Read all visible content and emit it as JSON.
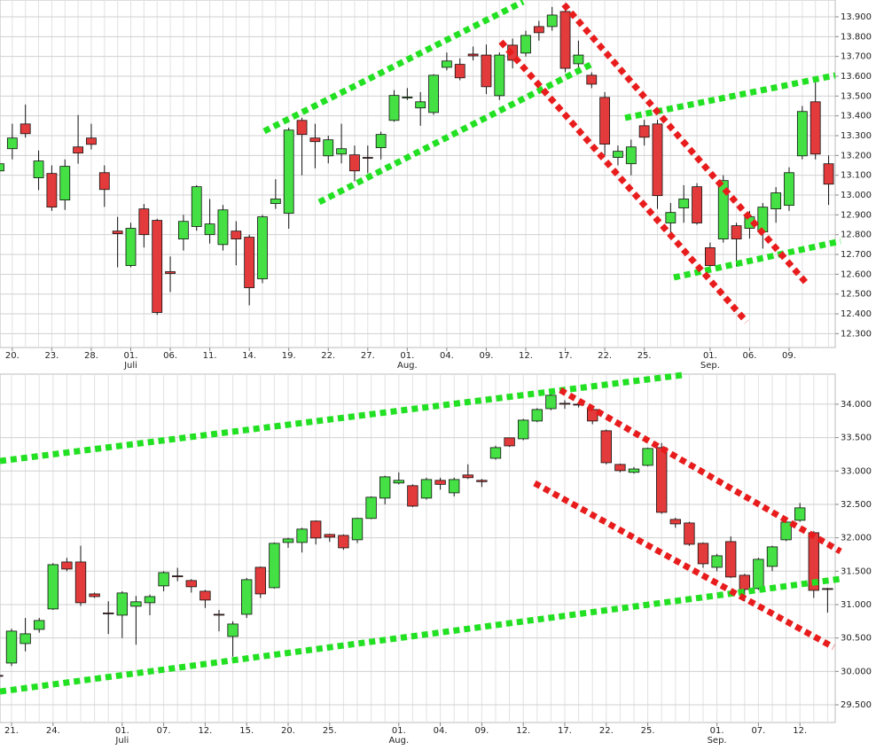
{
  "chart_data": [
    {
      "type": "candlestick",
      "grid": true,
      "up_color": "#44e044",
      "down_color": "#e33b3b",
      "categories": [
        null,
        "20.",
        null,
        null,
        "23.",
        null,
        null,
        "28.",
        null,
        null,
        "01.",
        null,
        null,
        "06.",
        null,
        null,
        "11.",
        null,
        null,
        "14.",
        null,
        null,
        "19.",
        null,
        null,
        "22.",
        null,
        null,
        "27.",
        null,
        null,
        "01.",
        null,
        null,
        "04.",
        null,
        null,
        "09.",
        null,
        null,
        "12.",
        null,
        null,
        "17.",
        null,
        null,
        "22.",
        null,
        null,
        "25.",
        null,
        null,
        null,
        null,
        "01.",
        null,
        null,
        "06.",
        null,
        null,
        "09.",
        null,
        null,
        null
      ],
      "month_labels": [
        null,
        null,
        null,
        null,
        null,
        null,
        null,
        null,
        null,
        null,
        "Juli",
        null,
        null,
        null,
        null,
        null,
        null,
        null,
        null,
        null,
        null,
        null,
        null,
        null,
        null,
        null,
        null,
        null,
        null,
        null,
        null,
        "Aug.",
        null,
        null,
        null,
        null,
        null,
        null,
        null,
        null,
        null,
        null,
        null,
        null,
        null,
        null,
        null,
        null,
        null,
        null,
        null,
        null,
        null,
        null,
        "Sep.",
        null,
        null,
        null,
        null,
        null,
        null,
        null,
        null,
        null
      ],
      "open": [
        13122,
        13234,
        13359,
        13087,
        13109,
        12975,
        13243,
        13288,
        13113,
        12818,
        12644,
        12930,
        12872,
        12613,
        12778,
        12841,
        12800,
        12750,
        12818,
        12787,
        12577,
        12957,
        12908,
        13377,
        13288,
        13198,
        13207,
        13203,
        13190,
        13239,
        13377,
        13490,
        13440,
        13417,
        13645,
        13660,
        13712,
        13707,
        13502,
        13757,
        13717,
        13851,
        13851,
        13927,
        13663,
        13605,
        13493,
        13190,
        13158,
        13350,
        13359,
        12859,
        12935,
        13042,
        12734,
        12778,
        12845,
        12832,
        12814,
        12930,
        12948,
        13198,
        13471,
        13158
      ],
      "high": [
        13180,
        13360,
        13457,
        13225,
        13150,
        13180,
        13404,
        13360,
        13150,
        12890,
        12860,
        12955,
        12880,
        12690,
        12900,
        13050,
        12980,
        12950,
        12868,
        12800,
        12900,
        13080,
        13340,
        13390,
        13360,
        13300,
        13360,
        13250,
        13250,
        13320,
        13530,
        13540,
        13520,
        13610,
        13720,
        13690,
        13750,
        13760,
        13720,
        13790,
        13830,
        13880,
        13950,
        13940,
        13780,
        13620,
        13520,
        13250,
        13280,
        13380,
        13380,
        12960,
        13050,
        13060,
        12760,
        13100,
        12860,
        12920,
        12960,
        13040,
        13140,
        13450,
        13570,
        13200
      ],
      "low": [
        13100,
        13180,
        13290,
        13025,
        12920,
        12925,
        13158,
        13230,
        12940,
        12635,
        12635,
        12735,
        12395,
        12510,
        12720,
        12820,
        12755,
        12720,
        12645,
        12443,
        12555,
        12930,
        12830,
        13100,
        13135,
        13160,
        13160,
        13070,
        13110,
        13180,
        13370,
        13480,
        13350,
        13405,
        13630,
        13580,
        13680,
        13510,
        13480,
        13640,
        13700,
        13780,
        13830,
        13620,
        13640,
        13540,
        13200,
        13150,
        13100,
        13250,
        12930,
        12780,
        12860,
        12850,
        12610,
        12760,
        12640,
        12780,
        12730,
        12860,
        12920,
        13180,
        13180,
        12950
      ],
      "close": [
        13158,
        13288,
        13310,
        13172,
        12939,
        13145,
        13212,
        13256,
        13028,
        12805,
        12832,
        12800,
        12407,
        12604,
        12867,
        13042,
        12854,
        12925,
        12778,
        12532,
        12890,
        12980,
        13328,
        13306,
        13270,
        13279,
        13234,
        13122,
        13188,
        13306,
        13503,
        13495,
        13471,
        13605,
        13677,
        13592,
        13703,
        13547,
        13707,
        13681,
        13806,
        13820,
        13909,
        13640,
        13707,
        13560,
        13257,
        13221,
        13243,
        13292,
        12997,
        12912,
        12980,
        12859,
        12644,
        13073,
        12778,
        12890,
        12939,
        13011,
        13113,
        13422,
        13207,
        13055
      ],
      "ylim": [
        12230,
        13985
      ],
      "yticks": [
        {
          "value": 12300,
          "label": "12.300"
        },
        {
          "value": 12400,
          "label": "12.400"
        },
        {
          "value": 12500,
          "label": "12.500"
        },
        {
          "value": 12600,
          "label": "12.600"
        },
        {
          "value": 12700,
          "label": "12.700"
        },
        {
          "value": 12800,
          "label": "12.800"
        },
        {
          "value": 12900,
          "label": "12.900"
        },
        {
          "value": 13000,
          "label": "13.000"
        },
        {
          "value": 13100,
          "label": "13.100"
        },
        {
          "value": 13200,
          "label": "13.200"
        },
        {
          "value": 13300,
          "label": "13.300"
        },
        {
          "value": 13400,
          "label": "13.400"
        },
        {
          "value": 13500,
          "label": "13.500"
        },
        {
          "value": 13600,
          "label": "13.600"
        },
        {
          "value": 13700,
          "label": "13.700"
        },
        {
          "value": 13800,
          "label": "13.800"
        },
        {
          "value": 13900,
          "label": "13.900"
        }
      ]
    },
    {
      "type": "candlestick",
      "grid": true,
      "up_color": "#44e044",
      "down_color": "#e33b3b",
      "categories": [
        null,
        "21.",
        null,
        null,
        "24.",
        null,
        null,
        null,
        null,
        "01.",
        null,
        null,
        "07.",
        null,
        null,
        "12.",
        null,
        null,
        "15.",
        null,
        null,
        "20.",
        null,
        null,
        "25.",
        null,
        null,
        null,
        null,
        "01.",
        null,
        null,
        "04.",
        null,
        null,
        "09.",
        null,
        null,
        "12.",
        null,
        null,
        "17.",
        null,
        null,
        "22.",
        null,
        null,
        "25.",
        null,
        null,
        null,
        null,
        "01.",
        null,
        null,
        "07.",
        null,
        null,
        "12.",
        null,
        null
      ],
      "month_labels": [
        null,
        null,
        null,
        null,
        null,
        null,
        null,
        null,
        null,
        "Juli",
        null,
        null,
        null,
        null,
        null,
        null,
        null,
        null,
        null,
        null,
        null,
        null,
        null,
        null,
        null,
        null,
        null,
        null,
        null,
        "Aug.",
        null,
        null,
        null,
        null,
        null,
        null,
        null,
        null,
        null,
        null,
        null,
        null,
        null,
        null,
        null,
        null,
        null,
        null,
        null,
        null,
        null,
        null,
        "Sep.",
        null,
        null,
        null,
        null,
        null,
        null,
        null,
        null
      ],
      "open": [
        29940,
        30125,
        30417,
        30629,
        30935,
        31638,
        31638,
        31160,
        30875,
        30842,
        30975,
        31028,
        31280,
        31430,
        31360,
        31200,
        30855,
        30523,
        30855,
        31558,
        31253,
        31930,
        31930,
        32250,
        32050,
        32036,
        31970,
        32290,
        32594,
        32820,
        32780,
        32594,
        32860,
        32673,
        32940,
        32860,
        33190,
        33496,
        33482,
        33748,
        33933,
        34013,
        34000,
        33920,
        33602,
        33098,
        32980,
        33084,
        33350,
        32275,
        32222,
        31917,
        31558,
        31943,
        31439,
        31240,
        31572,
        31970,
        32262,
        32076,
        31240
      ],
      "high": [
        29950,
        30640,
        30800,
        30800,
        31620,
        31700,
        31880,
        31180,
        31050,
        31200,
        31130,
        31150,
        31500,
        31550,
        31380,
        31220,
        30920,
        30750,
        31400,
        31570,
        31930,
        32000,
        32150,
        32260,
        32060,
        32050,
        32300,
        32620,
        32930,
        32980,
        32800,
        32900,
        32900,
        32900,
        33100,
        32880,
        33380,
        33500,
        33780,
        33940,
        34150,
        34060,
        34030,
        33950,
        33620,
        33110,
        33060,
        33350,
        33420,
        32300,
        32240,
        31930,
        31760,
        32020,
        31460,
        31700,
        31880,
        32250,
        32520,
        32100,
        31250
      ],
      "low": [
        29930,
        30080,
        30300,
        30580,
        30920,
        31500,
        30980,
        31100,
        30560,
        30500,
        30400,
        30840,
        31200,
        31350,
        31180,
        30950,
        30600,
        30220,
        30800,
        31100,
        31240,
        31850,
        31780,
        31900,
        31940,
        31820,
        31920,
        32280,
        32500,
        32800,
        32460,
        32570,
        32720,
        32620,
        32880,
        32760,
        33170,
        33360,
        33460,
        33730,
        33910,
        33930,
        33950,
        33700,
        33100,
        32980,
        32960,
        33070,
        32360,
        32150,
        31880,
        31550,
        31500,
        31400,
        31050,
        31220,
        31500,
        31950,
        32240,
        31100,
        30880
      ],
      "close": [
        29935,
        30603,
        30563,
        30762,
        31598,
        31532,
        31028,
        31120,
        30870,
        31174,
        31042,
        31120,
        31479,
        31426,
        31267,
        31068,
        30850,
        30709,
        31373,
        31160,
        31917,
        31983,
        32130,
        31997,
        32010,
        31850,
        32290,
        32607,
        32912,
        32860,
        32474,
        32872,
        32800,
        32872,
        32900,
        32840,
        33350,
        33376,
        33761,
        33920,
        34133,
        34007,
        33993,
        33748,
        33124,
        33005,
        33030,
        33337,
        32381,
        32208,
        31903,
        31611,
        31731,
        31413,
        31227,
        31678,
        31864,
        32235,
        32448,
        31213,
        31230
      ],
      "ylim": [
        29235,
        34450
      ],
      "yticks": [
        {
          "value": 29500,
          "label": "29.500"
        },
        {
          "value": 30000,
          "label": "30.000"
        },
        {
          "value": 30500,
          "label": "30.500"
        },
        {
          "value": 31000,
          "label": "31.000"
        },
        {
          "value": 31500,
          "label": "31.500"
        },
        {
          "value": 32000,
          "label": "32.000"
        },
        {
          "value": 32500,
          "label": "32.500"
        },
        {
          "value": 33000,
          "label": "33.000"
        },
        {
          "value": 33500,
          "label": "33.500"
        },
        {
          "value": 34000,
          "label": "34.000"
        }
      ]
    }
  ]
}
